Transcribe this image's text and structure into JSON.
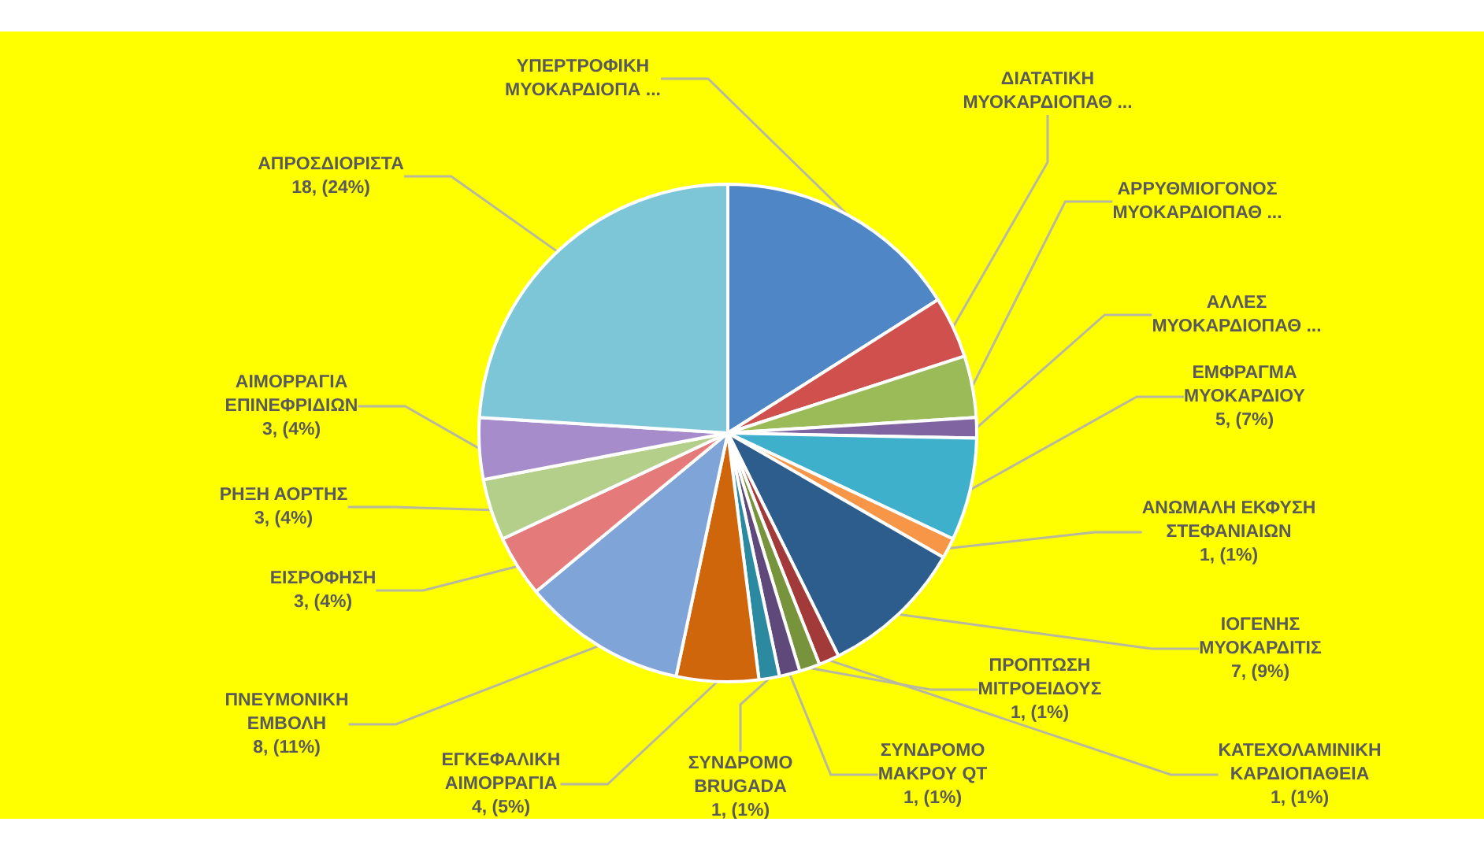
{
  "chart_data": {
    "type": "pie",
    "categories": [
      "ΥΠΕΡΤΡΟΦΙΚΗ ΜΥΟΚΑΡΔΙΟΠΑ ...",
      "ΔΙΑΤΑΤΙΚΗ ΜΥΟΚΑΡΔΙΟΠΑΘ ...",
      "ΑΡΡΥΘΜΙΟΓΟΝΟΣ ΜΥΟΚΑΡΔΙΟΠΑΘ ...",
      "ΑΛΛΕΣ ΜΥΟΚΑΡΔΙΟΠΑΘ ...",
      "ΕΜΦΡΑΓΜΑ ΜΥΟΚΑΡΔΙΟΥ",
      "ΑΝΩΜΑΛΗ ΕΚΦΥΣΗ ΣΤΕΦΑΝΙΑΙΩΝ",
      "ΙΟΓΕΝΗΣ ΜΥΟΚΑΡΔΙΤΙΣ",
      "ΚΑΤΕΧΟΛΑΜΙΝΙΚΗ ΚΑΡΔΙΟΠΑΘΕΙΑ",
      "ΠΡΟΠΤΩΣΗ ΜΙΤΡΟΕΙΔΟΥΣ",
      "ΣΥΝΔΡΟΜΟ ΜΑΚΡΟΥ QT",
      "ΣΥΝΔΡΟΜΟ BRUGADA",
      "ΕΓΚΕΦΑΛΙΚΗ ΑΙΜΟΡΡΑΓΙΑ",
      "ΠΝΕΥΜΟΝΙΚΗ ΕΜΒΟΛΗ",
      "ΕΙΣΡΟΦΗΣΗ",
      "ΡΗΞΗ ΑΟΡΤΗΣ",
      "ΑΙΜΟΡΡΑΓΙΑ ΕΠΙΝΕΦΡΙΔΙΩΝ",
      "ΑΠΡΟΣΔΙΟΡΙΣΤΑ"
    ],
    "values": [
      12,
      3,
      3,
      1,
      5,
      1,
      7,
      1,
      1,
      1,
      1,
      4,
      8,
      3,
      3,
      3,
      18
    ],
    "value_labels": [
      null,
      null,
      null,
      null,
      "5, (7%)",
      "1, (1%)",
      "7, (9%)",
      "1, (1%)",
      "1, (1%)",
      "1, (1%)",
      "1, (1%)",
      "4, (5%)",
      "8, (11%)",
      "3, (4%)",
      "3, (4%)",
      "3, (4%)",
      "18, (24%)"
    ],
    "colors": [
      "#4f86c6",
      "#d0504d",
      "#9bbb59",
      "#8064a2",
      "#3fb0cc",
      "#f79646",
      "#2c5d8c",
      "#a33a3a",
      "#77933c",
      "#5f497a",
      "#2b8aa0",
      "#d0660c",
      "#7ea4d8",
      "#e57a7a",
      "#b3cf8a",
      "#a68ccb",
      "#7dc6d8"
    ]
  }
}
